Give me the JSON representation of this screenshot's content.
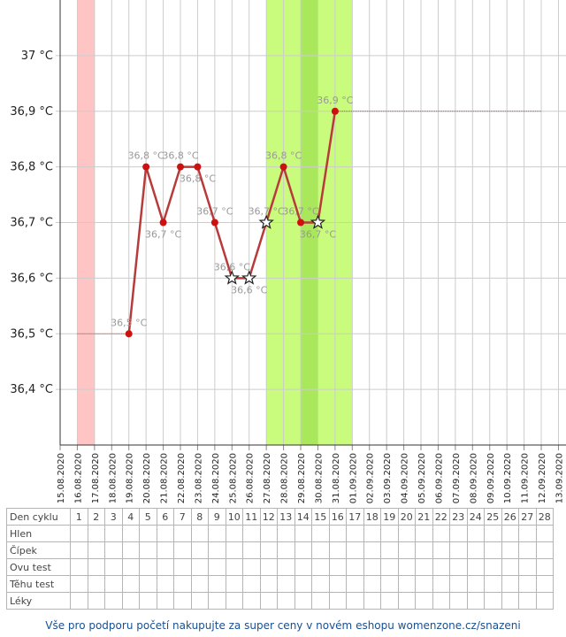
{
  "chart_data": {
    "type": "line",
    "ylabel": "",
    "xlabel": "",
    "ylim": [
      36.3,
      37.1
    ],
    "y_ticks": [
      {
        "value": 36.4,
        "label": "36,4 °C"
      },
      {
        "value": 36.5,
        "label": "36,5 °C"
      },
      {
        "value": 36.6,
        "label": "36,6 °C"
      },
      {
        "value": 36.7,
        "label": "36,7 °C"
      },
      {
        "value": 36.8,
        "label": "36,8 °C"
      },
      {
        "value": 36.9,
        "label": "36,9 °C"
      },
      {
        "value": 37.0,
        "label": "37 °C"
      }
    ],
    "dates": [
      "15.08.2020",
      "16.08.2020",
      "17.08.2020",
      "18.08.2020",
      "19.08.2020",
      "20.08.2020",
      "21.08.2020",
      "22.08.2020",
      "23.08.2020",
      "24.08.2020",
      "25.08.2020",
      "26.08.2020",
      "27.08.2020",
      "28.08.2020",
      "29.08.2020",
      "30.08.2020",
      "31.08.2020",
      "01.09.2020",
      "02.09.2020",
      "03.09.2020",
      "04.09.2020",
      "05.09.2020",
      "06.09.2020",
      "07.09.2020",
      "08.09.2020",
      "09.09.2020",
      "10.09.2020",
      "11.09.2020",
      "12.09.2020",
      "13.09.2020"
    ],
    "series": [
      {
        "points": [
          {
            "date": "19.08.2020",
            "value": 36.5,
            "label": "36,5 °C",
            "marker": "dot",
            "label_pos": "above"
          },
          {
            "date": "20.08.2020",
            "value": 36.8,
            "label": "36,8 °C",
            "marker": "dot",
            "label_pos": "above"
          },
          {
            "date": "21.08.2020",
            "value": 36.7,
            "label": "36,7 °C",
            "marker": "dot",
            "label_pos": "below"
          },
          {
            "date": "22.08.2020",
            "value": 36.8,
            "label": "36,8 °C",
            "marker": "dot",
            "label_pos": "above"
          },
          {
            "date": "23.08.2020",
            "value": 36.8,
            "label": "36,8 °C",
            "marker": "dot",
            "label_pos": "below"
          },
          {
            "date": "24.08.2020",
            "value": 36.7,
            "label": "36,7 °C",
            "marker": "dot",
            "label_pos": "above"
          },
          {
            "date": "25.08.2020",
            "value": 36.6,
            "label": "36,6 °C",
            "marker": "star",
            "label_pos": "above"
          },
          {
            "date": "26.08.2020",
            "value": 36.6,
            "label": "36,6 °C",
            "marker": "star",
            "label_pos": "below"
          },
          {
            "date": "27.08.2020",
            "value": 36.7,
            "label": "36,7 °C",
            "marker": "star",
            "label_pos": "above"
          },
          {
            "date": "28.08.2020",
            "value": 36.8,
            "label": "36,8 °C",
            "marker": "dot",
            "label_pos": "above"
          },
          {
            "date": "29.08.2020",
            "value": 36.7,
            "label": "36,7 °C",
            "marker": "dot",
            "label_pos": "above"
          },
          {
            "date": "30.08.2020",
            "value": 36.7,
            "label": "36,7 °C",
            "marker": "star",
            "label_pos": "below"
          },
          {
            "date": "31.08.2020",
            "value": 36.9,
            "label": "36,9 °C",
            "marker": "dot",
            "label_pos": "above"
          }
        ]
      }
    ],
    "baseline_before": {
      "from": "16.08.2020",
      "to": "19.08.2020",
      "value": 36.5
    },
    "coverline_after": {
      "from": "31.08.2020",
      "to": "12.09.2020",
      "value": 36.9
    },
    "bands": [
      {
        "from": "16.08.2020",
        "to": "17.08.2020",
        "color": "#ffc4c4"
      },
      {
        "from": "27.08.2020",
        "to": "01.09.2020",
        "color": "#c9fb7c"
      },
      {
        "from": "29.08.2020",
        "to": "30.08.2020",
        "color": "#a8e85a"
      }
    ],
    "grid": true,
    "line_color": "#b73b3b",
    "dot_color": "#cc1111",
    "dashed_color": "#cc3333"
  },
  "table": {
    "day_header": "Den cyklu",
    "days": [
      "1",
      "2",
      "3",
      "4",
      "5",
      "6",
      "7",
      "8",
      "9",
      "10",
      "11",
      "12",
      "13",
      "14",
      "15",
      "16",
      "17",
      "18",
      "19",
      "20",
      "21",
      "22",
      "23",
      "24",
      "25",
      "26",
      "27",
      "28"
    ],
    "rows": [
      "Hlen",
      "Čípek",
      "Ovu test",
      "Těhu test",
      "Léky"
    ]
  },
  "footer": "Vše pro podporu početí nakupujte za super ceny v novém eshopu womenzone.cz/snazeni"
}
